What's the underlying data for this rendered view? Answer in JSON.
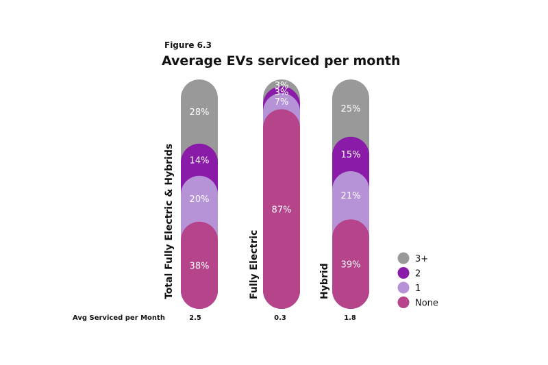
{
  "figure_label": "Figure 6.3",
  "chart_data": {
    "type": "bar",
    "stacked": true,
    "title": "Average EVs serviced per month",
    "categories": [
      "Total Fully Electric & Hybrids",
      "Fully Electric",
      "Hybrid"
    ],
    "series": [
      {
        "name": "None",
        "values": [
          38,
          87,
          39
        ],
        "labels": [
          "38%",
          "87%",
          "39%"
        ]
      },
      {
        "name": "1",
        "values": [
          20,
          7,
          21
        ],
        "labels": [
          "20%",
          "7%",
          "21%"
        ]
      },
      {
        "name": "2",
        "values": [
          14,
          3,
          15
        ],
        "labels": [
          "14%",
          "3%",
          "15%"
        ]
      },
      {
        "name": "3+",
        "values": [
          28,
          3,
          25
        ],
        "labels": [
          "28%",
          "3%",
          "25%"
        ]
      }
    ],
    "ylim": [
      0,
      100
    ],
    "grid": false,
    "legend": {
      "position": "right",
      "order": [
        "3+",
        "2",
        "1",
        "None"
      ]
    },
    "colors": {
      "3+": "#999999",
      "2": "#8a1aa8",
      "1": "#b593d6",
      "None": "#b5448a"
    },
    "footer": {
      "label": "Avg Serviced per Month",
      "values": [
        "2.5",
        "0.3",
        "1.8"
      ]
    }
  }
}
